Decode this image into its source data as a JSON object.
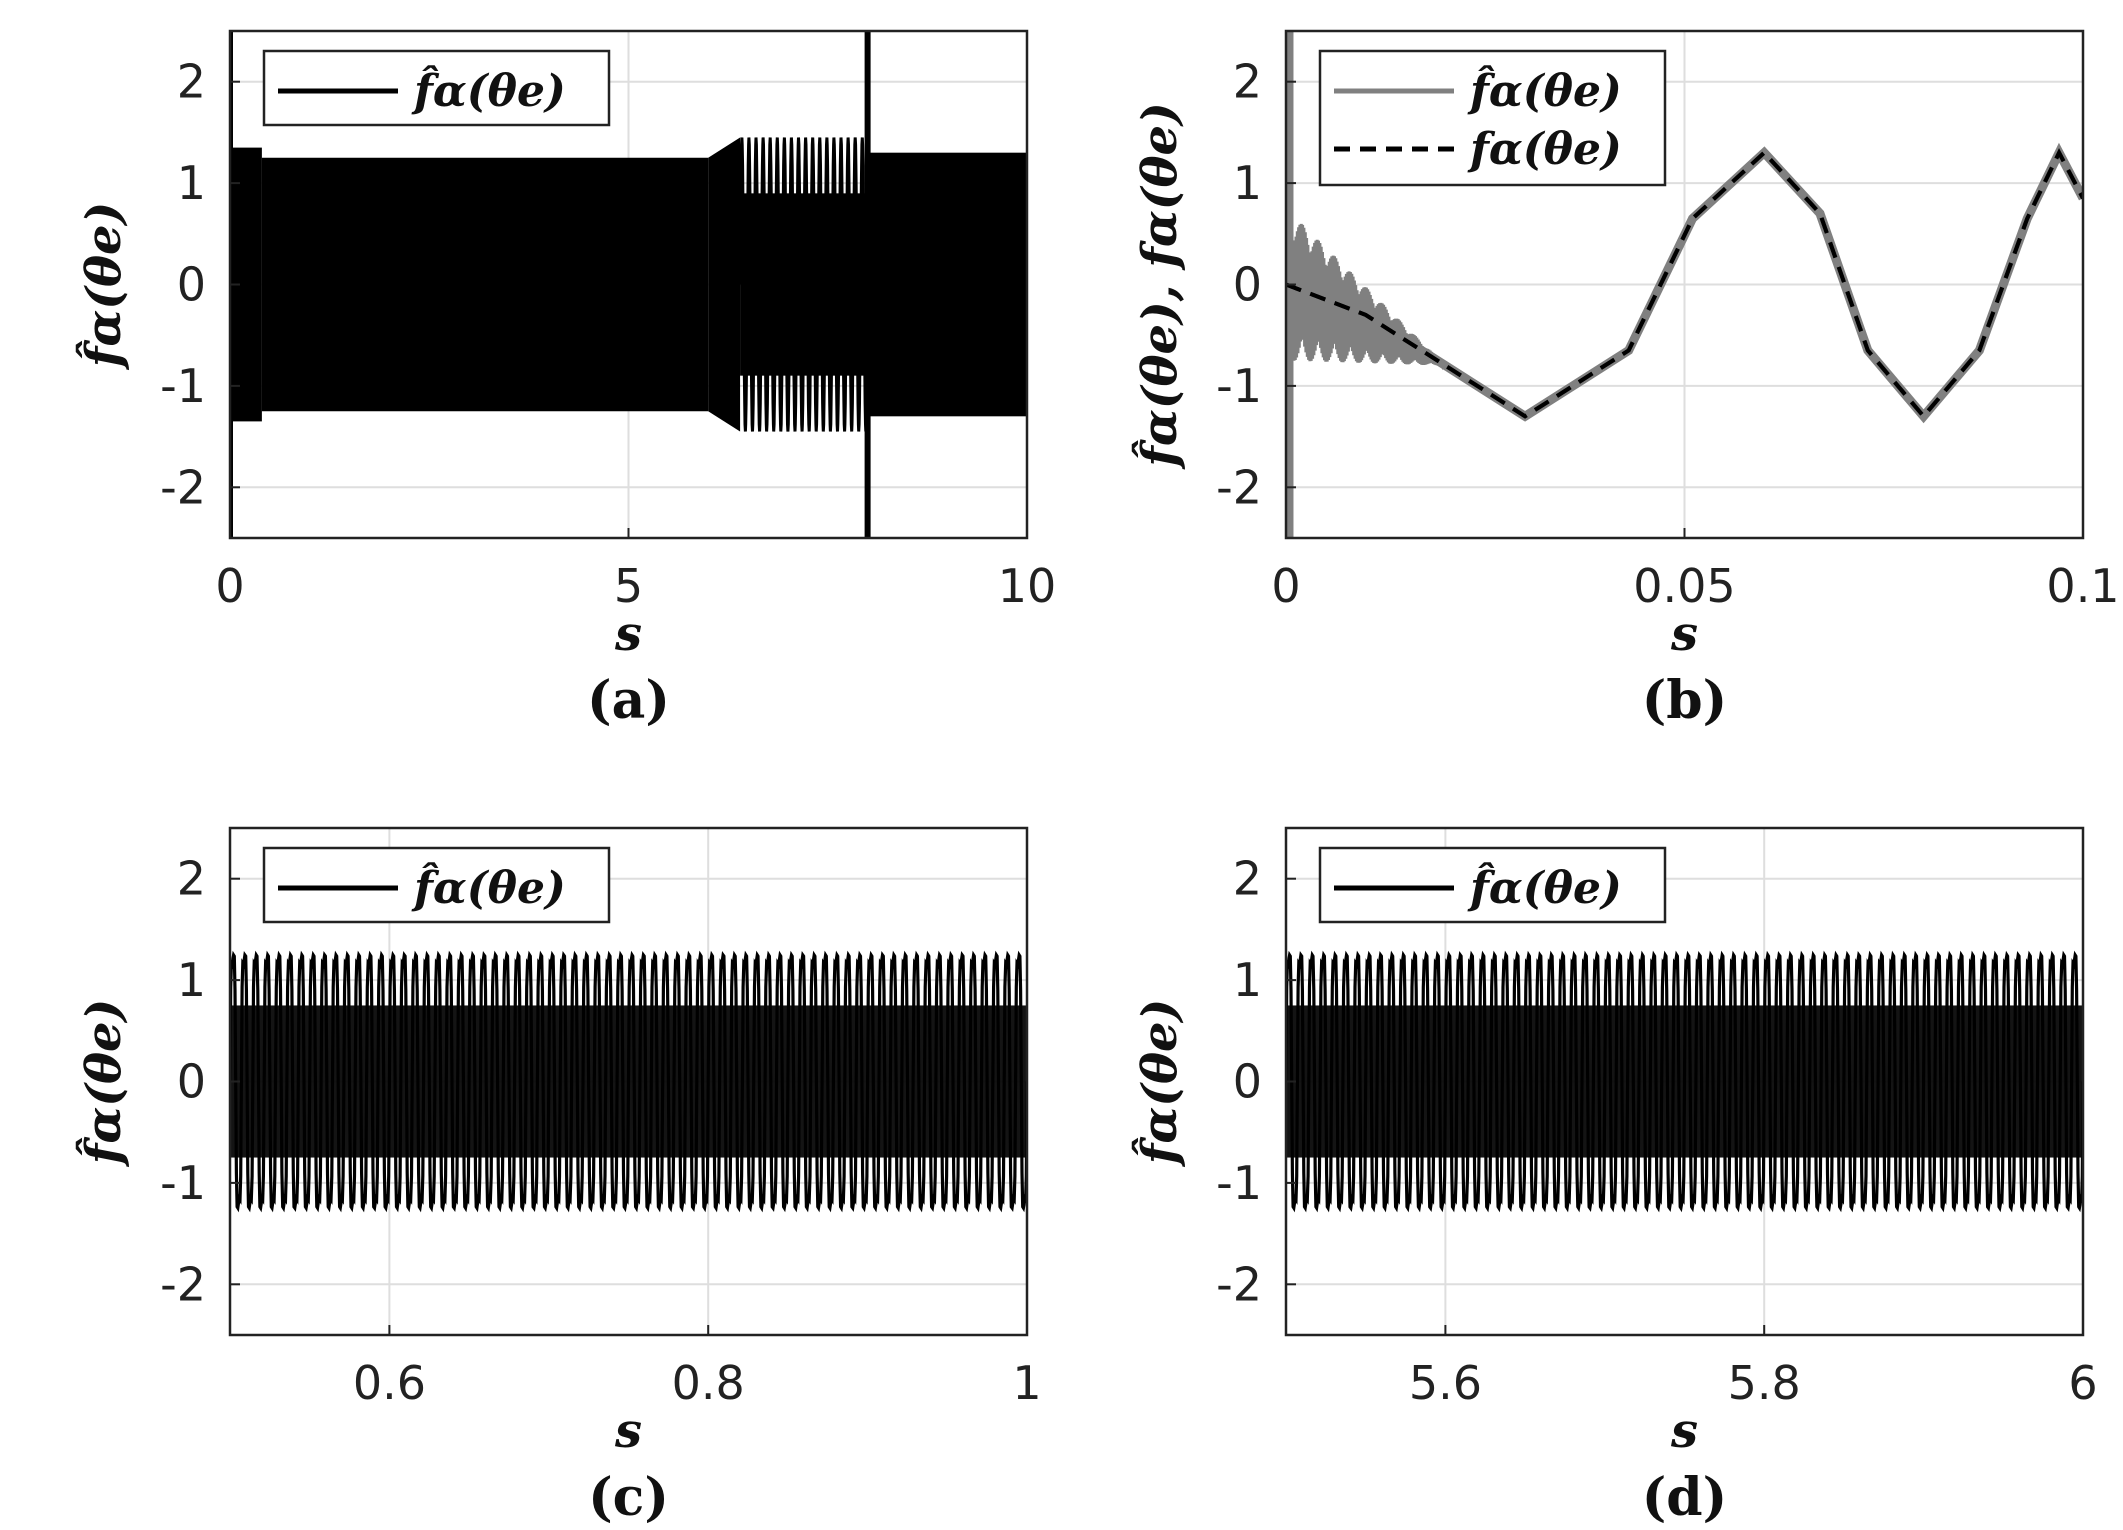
{
  "chart_data": [
    {
      "panel": "(a)",
      "type": "line",
      "xlabel": "s",
      "ylabel": "f̂α(θe)",
      "xlim": [
        0,
        10
      ],
      "ylim": [
        -2.5,
        2.5
      ],
      "xticks": [
        "0",
        "5",
        "10"
      ],
      "yticks": [
        "-2",
        "-1",
        "0",
        "1",
        "2"
      ],
      "grid": true,
      "legend_position": "top-left",
      "series": [
        {
          "name": "f̂α(θe)",
          "color": "#000000",
          "style": "solid",
          "envelope": [
            {
              "x0": 0.0,
              "x1": 0.4,
              "amp": 1.35
            },
            {
              "x0": 0.4,
              "x1": 6.0,
              "amp": 1.25
            },
            {
              "x0": 6.0,
              "x1": 6.4,
              "amp": 1.25,
              "amp_end": 1.45
            },
            {
              "x0": 6.4,
              "x1": 8.0,
              "amp": 1.45,
              "burst": true
            },
            {
              "x0": 8.0,
              "x1": 10.0,
              "amp": 1.3
            }
          ],
          "spikes": [
            {
              "x": 0.0,
              "from": -2.5,
              "to": 2.5
            },
            {
              "x": 8.0,
              "from": -2.5,
              "to": 2.5
            }
          ]
        }
      ]
    },
    {
      "panel": "(b)",
      "type": "line",
      "xlabel": "s",
      "ylabel": "f̂α(θe), fα(θe)",
      "xlim": [
        0,
        0.1
      ],
      "ylim": [
        -2.5,
        2.5
      ],
      "xticks": [
        "0",
        "0.05",
        "0.1"
      ],
      "yticks": [
        "-2",
        "-1",
        "0",
        "1",
        "2"
      ],
      "grid": true,
      "legend_position": "top-left",
      "series": [
        {
          "name": "f̂α(θe)",
          "color": "#808080",
          "style": "solid",
          "noise_band": {
            "x0": 0.0,
            "x1": 0.02,
            "amp_start": 0.75,
            "amp_end": 0.0
          },
          "initial_spike": {
            "x": 0.0005,
            "from": -2.5,
            "to": 2.5
          }
        },
        {
          "name": "fα(θe)",
          "color": "#000000",
          "style": "dashed",
          "x": [
            0,
            0.01,
            0.02,
            0.03,
            0.043,
            0.051,
            0.06,
            0.067,
            0.073,
            0.08,
            0.087,
            0.093,
            0.097,
            0.1
          ],
          "y": [
            0,
            -0.3,
            -0.8,
            -1.3,
            -0.65,
            0.65,
            1.3,
            0.7,
            -0.65,
            -1.3,
            -0.65,
            0.65,
            1.3,
            0.85
          ]
        }
      ]
    },
    {
      "panel": "(c)",
      "type": "line",
      "xlabel": "s",
      "ylabel": "f̂α(θe)",
      "xlim": [
        0.5,
        1
      ],
      "ylim": [
        -2.5,
        2.5
      ],
      "xticks": [
        "0.6",
        "0.8",
        "1"
      ],
      "yticks": [
        "-2",
        "-1",
        "0",
        "1",
        "2"
      ],
      "grid": true,
      "legend_position": "top-left",
      "series": [
        {
          "name": "f̂α(θe)",
          "color": "#000000",
          "style": "solid",
          "amplitude": 1.25,
          "cycles": 70
        }
      ]
    },
    {
      "panel": "(d)",
      "type": "line",
      "xlabel": "s",
      "ylabel": "f̂α(θe)",
      "xlim": [
        5.5,
        6
      ],
      "ylim": [
        -2.5,
        2.5
      ],
      "xticks": [
        "5.6",
        "5.8",
        "6"
      ],
      "yticks": [
        "-2",
        "-1",
        "0",
        "1",
        "2"
      ],
      "grid": true,
      "legend_position": "top-left",
      "series": [
        {
          "name": "f̂α(θe)",
          "color": "#000000",
          "style": "solid",
          "amplitude": 1.25,
          "cycles": 70
        }
      ]
    }
  ]
}
